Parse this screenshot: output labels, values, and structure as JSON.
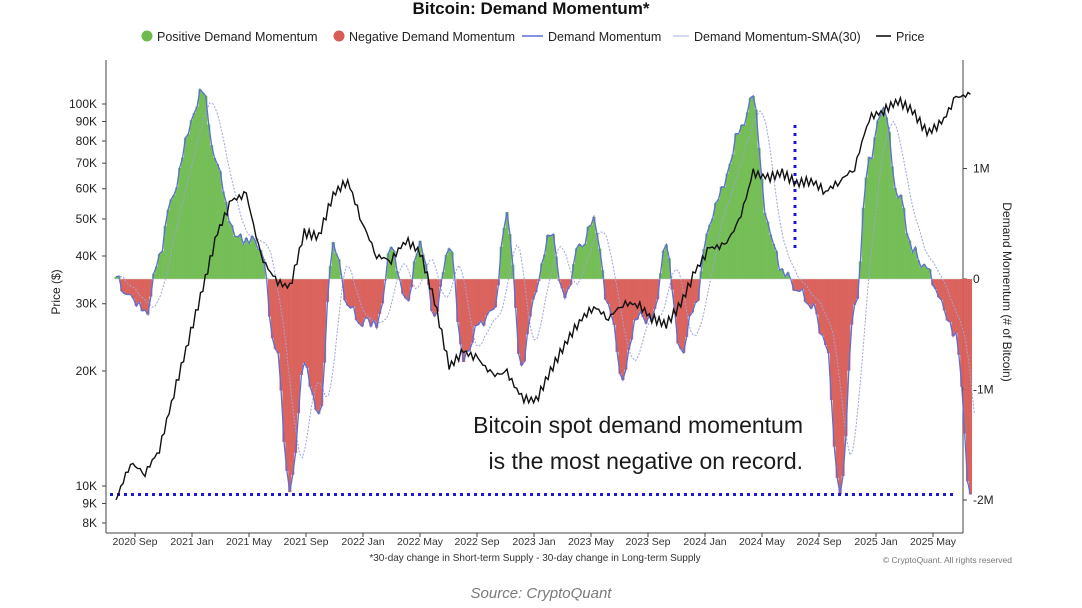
{
  "chart_data": {
    "type": "area",
    "title": "Bitcoin: Demand Momentum*",
    "legend": {
      "placement": "top-center",
      "entries": [
        {
          "label": "Positive Demand Momentum",
          "kind": "dot",
          "color": "#6fba4f"
        },
        {
          "label": "Negative Demand Momentum",
          "kind": "dot",
          "color": "#d95c55"
        },
        {
          "label": "Demand Momentum",
          "kind": "line",
          "color": "#5b6fd6"
        },
        {
          "label": "Demand Momentum-SMA(30)",
          "kind": "line",
          "color": "#b8bde6"
        },
        {
          "label": "Price",
          "kind": "line",
          "color": "#111111"
        }
      ]
    },
    "y_left": {
      "label": "Price ($)",
      "scale": "log",
      "ticks": [
        "100K",
        "90K",
        "80K",
        "70K",
        "60K",
        "50K",
        "40K",
        "30K",
        "20K",
        "10K",
        "9K",
        "8K"
      ],
      "tick_values": [
        100000,
        90000,
        80000,
        70000,
        60000,
        50000,
        40000,
        30000,
        20000,
        10000,
        9000,
        8000
      ]
    },
    "y_right": {
      "label": "Demand Momentum (# of Bitcoin)",
      "ticks": [
        "1M",
        "0",
        "-1M",
        "-2M"
      ],
      "tick_values": [
        1000000,
        0,
        -1000000,
        -2000000
      ]
    },
    "x": {
      "ticks": [
        "2020 Sep",
        "2021 Jan",
        "2021 May",
        "2021 Sep",
        "2022 Jan",
        "2022 May",
        "2022 Sep",
        "2023 Jan",
        "2023 May",
        "2023 Sep",
        "2024 Jan",
        "2024 May",
        "2024 Sep",
        "2025 Jan",
        "2025 May"
      ],
      "range": [
        "2020-07",
        "2025-07"
      ]
    },
    "grid": false,
    "reference_line": {
      "value": -1950000,
      "style": "dotted",
      "color": "#1a1ad6"
    },
    "annotation": [
      "Bitcoin spot demand momentum",
      "is the most negative on record."
    ],
    "footnote": "*30-day change in Short-term Supply - 30-day change in Long-term Supply",
    "copyright": "© CryptoQuant. All rights reserved",
    "series": [
      {
        "name": "Price",
        "x": [
          "2020-07",
          "2020-08",
          "2020-09",
          "2020-10",
          "2020-11",
          "2020-12",
          "2021-01",
          "2021-02",
          "2021-03",
          "2021-04",
          "2021-05",
          "2021-06",
          "2021-07",
          "2021-08",
          "2021-09",
          "2021-10",
          "2021-11",
          "2021-12",
          "2022-01",
          "2022-02",
          "2022-03",
          "2022-04",
          "2022-05",
          "2022-06",
          "2022-07",
          "2022-08",
          "2022-09",
          "2022-10",
          "2022-11",
          "2022-12",
          "2023-01",
          "2023-02",
          "2023-03",
          "2023-04",
          "2023-05",
          "2023-06",
          "2023-07",
          "2023-08",
          "2023-09",
          "2023-10",
          "2023-11",
          "2023-12",
          "2024-01",
          "2024-02",
          "2024-03",
          "2024-04",
          "2024-05",
          "2024-06",
          "2024-07",
          "2024-08",
          "2024-09",
          "2024-10",
          "2024-11",
          "2024-12",
          "2025-01",
          "2025-02",
          "2025-03",
          "2025-04",
          "2025-05",
          "2025-06"
        ],
        "values": [
          9200,
          11500,
          10800,
          12500,
          17500,
          24000,
          33000,
          46000,
          56000,
          58000,
          40000,
          34500,
          33000,
          46000,
          45000,
          58000,
          63000,
          49000,
          40000,
          39000,
          44000,
          41000,
          30500,
          20500,
          22500,
          21500,
          19500,
          19800,
          17000,
          16700,
          20000,
          23500,
          27000,
          29500,
          27500,
          30000,
          30000,
          27500,
          26500,
          30000,
          36500,
          42000,
          42500,
          49000,
          66000,
          64000,
          66000,
          62000,
          63000,
          59000,
          63000,
          68000,
          92000,
          96000,
          102000,
          96000,
          84000,
          89000,
          104000,
          106000
        ]
      },
      {
        "name": "Demand Momentum",
        "x": [
          "2020-07",
          "2020-08",
          "2020-09",
          "2020-10",
          "2020-11",
          "2020-12",
          "2021-01",
          "2021-02",
          "2021-03",
          "2021-04",
          "2021-05",
          "2021-06",
          "2021-07",
          "2021-08",
          "2021-09",
          "2021-10",
          "2021-11",
          "2021-12",
          "2022-01",
          "2022-02",
          "2022-03",
          "2022-04",
          "2022-05",
          "2022-06",
          "2022-07",
          "2022-08",
          "2022-09",
          "2022-10",
          "2022-11",
          "2022-12",
          "2023-01",
          "2023-02",
          "2023-03",
          "2023-04",
          "2023-05",
          "2023-06",
          "2023-07",
          "2023-08",
          "2023-09",
          "2023-10",
          "2023-11",
          "2023-12",
          "2024-01",
          "2024-02",
          "2024-03",
          "2024-04",
          "2024-05",
          "2024-06",
          "2024-07",
          "2024-08",
          "2024-09",
          "2024-10",
          "2024-11",
          "2024-12",
          "2025-01",
          "2025-02",
          "2025-03",
          "2025-04",
          "2025-05",
          "2025-06"
        ],
        "values": [
          20000,
          -180000,
          -320000,
          220000,
          800000,
          1350000,
          1700000,
          1000000,
          450000,
          350000,
          300000,
          -600000,
          -1900000,
          -800000,
          -1250000,
          300000,
          -200000,
          -400000,
          -400000,
          250000,
          -200000,
          300000,
          -300000,
          300000,
          -700000,
          -450000,
          -300000,
          550000,
          -750000,
          -100000,
          450000,
          -200000,
          300000,
          500000,
          -200000,
          -900000,
          -300000,
          -400000,
          300000,
          -700000,
          -200000,
          500000,
          900000,
          1300000,
          1650000,
          450000,
          100000,
          -100000,
          -200000,
          -600000,
          -1950000,
          -300000,
          1100000,
          1550000,
          800000,
          250000,
          100000,
          -250000,
          -500000,
          -1950000
        ]
      }
    ]
  }
}
